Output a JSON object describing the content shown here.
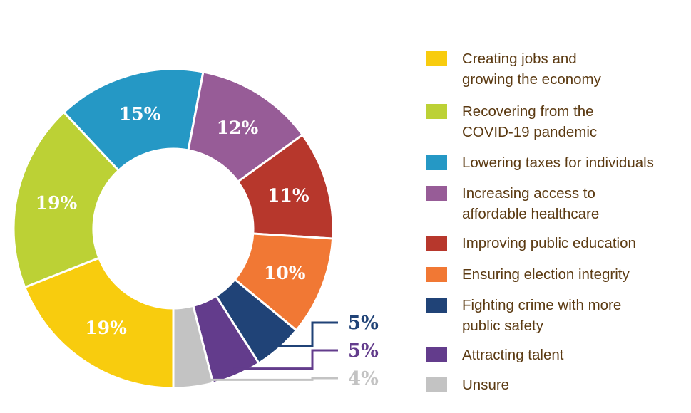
{
  "chart_data": {
    "type": "pie",
    "variant": "donut",
    "legend_position": "right",
    "slices": [
      {
        "label": "Creating jobs and growing the economy",
        "value": 19,
        "value_label": "19%",
        "color": "#f8cc0e"
      },
      {
        "label": "Recovering from the COVID-19 pandemic",
        "value": 19,
        "value_label": "19%",
        "color": "#bcd135"
      },
      {
        "label": "Lowering taxes for individuals",
        "value": 15,
        "value_label": "15%",
        "color": "#2598c5"
      },
      {
        "label": "Increasing access to affordable healthcare",
        "value": 12,
        "value_label": "12%",
        "color": "#975c97"
      },
      {
        "label": "Improving public education",
        "value": 11,
        "value_label": "11%",
        "color": "#b7372c"
      },
      {
        "label": "Ensuring election integrity",
        "value": 10,
        "value_label": "10%",
        "color": "#f17834"
      },
      {
        "label": "Fighting crime with more public safety",
        "value": 5,
        "value_label": "5%",
        "color": "#204377"
      },
      {
        "label": "Attracting talent",
        "value": 5,
        "value_label": "5%",
        "color": "#633c8c"
      },
      {
        "label": "Unsure",
        "value": 4,
        "value_label": "4%",
        "color": "#c3c3c3"
      }
    ]
  },
  "legend": [
    {
      "lines": [
        "Creating jobs and",
        "growing the economy"
      ],
      "color": "#f8cc0e"
    },
    {
      "lines": [
        "Recovering from the",
        "COVID-19 pandemic"
      ],
      "color": "#bcd135"
    },
    {
      "lines": [
        "Lowering taxes for individuals"
      ],
      "color": "#2598c5"
    },
    {
      "lines": [
        "Increasing access to",
        "affordable healthcare"
      ],
      "color": "#975c97"
    },
    {
      "lines": [
        "Improving public education"
      ],
      "color": "#b7372c"
    },
    {
      "lines": [
        "Ensuring election integrity"
      ],
      "color": "#f17834"
    },
    {
      "lines": [
        "Fighting crime with more",
        "public safety"
      ],
      "color": "#204377"
    },
    {
      "lines": [
        "Attracting talent"
      ],
      "color": "#633c8c"
    },
    {
      "lines": [
        "Unsure"
      ],
      "color": "#c3c3c3"
    }
  ]
}
